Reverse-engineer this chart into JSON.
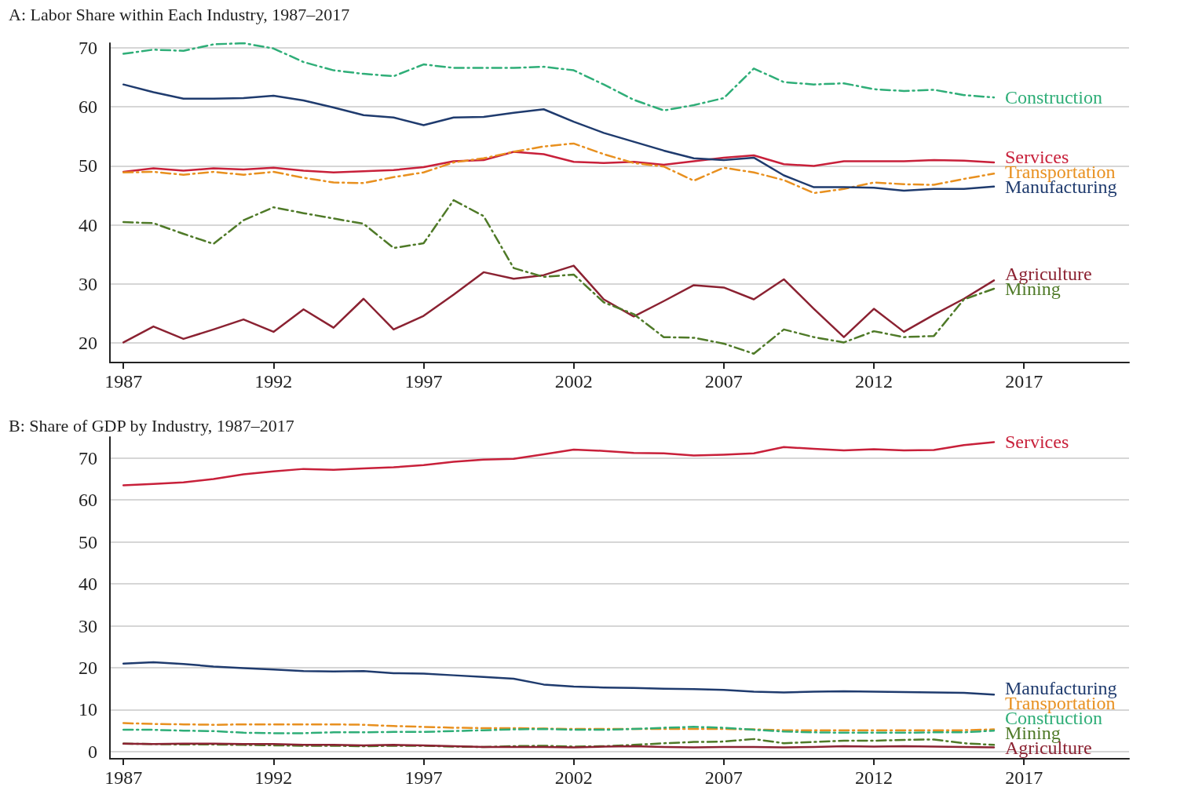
{
  "chart_data": [
    {
      "type": "line",
      "title": "A: Labor Share within Each Industry, 1987–2017",
      "x": [
        1987,
        1988,
        1989,
        1990,
        1991,
        1992,
        1993,
        1994,
        1995,
        1996,
        1997,
        1998,
        1999,
        2000,
        2001,
        2002,
        2003,
        2004,
        2005,
        2006,
        2007,
        2008,
        2009,
        2010,
        2011,
        2012,
        2013,
        2014,
        2015,
        2016
      ],
      "xlim": [
        1986.55,
        2020.5
      ],
      "xticks": [
        1987,
        1992,
        1997,
        2002,
        2007,
        2012,
        2017
      ],
      "ylim": [
        16.7,
        70.8
      ],
      "yticks": [
        20,
        30,
        40,
        50,
        60,
        70
      ],
      "grid": "y",
      "legend": false,
      "marker": "none",
      "series": [
        {
          "name": "Construction",
          "color": "#2fae78",
          "line_style": "dashed",
          "values": [
            69.0,
            69.7,
            69.5,
            70.6,
            70.8,
            69.9,
            67.6,
            66.2,
            65.6,
            65.2,
            67.2,
            66.6,
            66.6,
            66.6,
            66.8,
            66.2,
            63.8,
            61.2,
            59.4,
            60.3,
            61.5,
            66.5,
            64.2,
            63.8,
            64.0,
            63.0,
            62.7,
            62.9,
            62.0,
            61.6
          ]
        },
        {
          "name": "Services",
          "color": "#c8203a",
          "line_style": "solid",
          "values": [
            49.0,
            49.6,
            49.2,
            49.6,
            49.4,
            49.7,
            49.2,
            48.9,
            49.1,
            49.3,
            49.8,
            50.8,
            51.0,
            52.4,
            52.0,
            50.7,
            50.5,
            50.7,
            50.2,
            50.8,
            51.4,
            51.8,
            50.3,
            50.0,
            50.8,
            50.8,
            50.8,
            51.0,
            50.9,
            50.6
          ]
        },
        {
          "name": "Transportation",
          "color": "#e8901f",
          "line_style": "dashed",
          "values": [
            48.9,
            49.0,
            48.5,
            49.0,
            48.5,
            49.0,
            48.0,
            47.2,
            47.1,
            48.1,
            48.9,
            50.6,
            51.3,
            52.4,
            53.3,
            53.8,
            52.0,
            50.5,
            49.9,
            47.5,
            49.7,
            48.9,
            47.6,
            45.4,
            46.1,
            47.2,
            46.9,
            46.8,
            47.8,
            48.7
          ]
        },
        {
          "name": "Manufacturing",
          "color": "#1f3b6e",
          "line_style": "solid",
          "values": [
            63.8,
            62.5,
            61.4,
            61.4,
            61.5,
            61.9,
            61.1,
            59.9,
            58.6,
            58.2,
            56.9,
            58.2,
            58.3,
            59.0,
            59.6,
            57.5,
            55.6,
            54.1,
            52.6,
            51.3,
            51.0,
            51.4,
            48.4,
            46.4,
            46.4,
            46.3,
            45.8,
            46.1,
            46.1,
            46.5
          ]
        },
        {
          "name": "Agriculture",
          "color": "#8b2232",
          "line_style": "solid",
          "values": [
            20.1,
            22.8,
            20.7,
            22.3,
            24.0,
            21.9,
            25.7,
            22.6,
            27.5,
            22.3,
            24.6,
            28.2,
            32.0,
            30.9,
            31.5,
            33.1,
            27.4,
            24.5,
            27.1,
            29.8,
            29.4,
            27.4,
            30.8,
            25.8,
            21.0,
            25.8,
            21.9,
            24.8,
            27.5,
            30.6
          ]
        },
        {
          "name": "Mining",
          "color": "#4f7a28",
          "line_style": "dashed",
          "values": [
            40.5,
            40.3,
            38.5,
            36.8,
            40.8,
            43.0,
            42.0,
            41.1,
            40.2,
            36.1,
            36.9,
            44.2,
            41.5,
            32.7,
            31.2,
            31.6,
            26.9,
            24.9,
            21.0,
            20.9,
            19.9,
            18.2,
            22.3,
            21.0,
            20.1,
            22.0,
            21.0,
            21.2,
            27.4,
            29.2
          ]
        }
      ]
    },
    {
      "type": "line",
      "title": "B: Share of GDP by Industry, 1987–2017",
      "x": [
        1987,
        1988,
        1989,
        1990,
        1991,
        1992,
        1993,
        1994,
        1995,
        1996,
        1997,
        1998,
        1999,
        2000,
        2001,
        2002,
        2003,
        2004,
        2005,
        2006,
        2007,
        2008,
        2009,
        2010,
        2011,
        2012,
        2013,
        2014,
        2015,
        2016
      ],
      "xlim": [
        1986.55,
        2020.5
      ],
      "xticks": [
        1987,
        1992,
        1997,
        2002,
        2007,
        2012,
        2017
      ],
      "ylim": [
        -1.7,
        75
      ],
      "yticks": [
        0,
        10,
        20,
        30,
        40,
        50,
        60,
        70
      ],
      "grid": "y",
      "legend": false,
      "marker": "none",
      "series": [
        {
          "name": "Services",
          "color": "#c8203a",
          "line_style": "solid",
          "values": [
            63.5,
            63.8,
            64.2,
            65.0,
            66.1,
            66.8,
            67.4,
            67.2,
            67.5,
            67.8,
            68.3,
            69.1,
            69.6,
            69.8,
            70.9,
            72.0,
            71.7,
            71.2,
            71.1,
            70.6,
            70.8,
            71.1,
            72.6,
            72.2,
            71.8,
            72.1,
            71.8,
            71.9,
            73.1,
            73.8
          ]
        },
        {
          "name": "Manufacturing",
          "color": "#1f3b6e",
          "line_style": "solid",
          "values": [
            21.0,
            21.3,
            20.9,
            20.3,
            19.9,
            19.6,
            19.2,
            19.1,
            19.2,
            18.7,
            18.6,
            18.2,
            17.8,
            17.4,
            16.0,
            15.5,
            15.3,
            15.2,
            15.0,
            14.9,
            14.7,
            14.3,
            14.1,
            14.3,
            14.4,
            14.3,
            14.2,
            14.1,
            14.0,
            13.6
          ]
        },
        {
          "name": "Transportation",
          "color": "#e8901f",
          "line_style": "dashed",
          "values": [
            6.8,
            6.6,
            6.5,
            6.4,
            6.5,
            6.5,
            6.5,
            6.5,
            6.4,
            6.1,
            5.9,
            5.7,
            5.6,
            5.6,
            5.5,
            5.4,
            5.4,
            5.4,
            5.4,
            5.4,
            5.4,
            5.3,
            5.1,
            5.1,
            5.1,
            5.1,
            5.1,
            5.1,
            5.1,
            5.3
          ]
        },
        {
          "name": "Construction",
          "color": "#2fae78",
          "line_style": "dashed",
          "values": [
            5.2,
            5.2,
            5.0,
            4.9,
            4.5,
            4.4,
            4.4,
            4.6,
            4.6,
            4.7,
            4.7,
            4.9,
            5.1,
            5.3,
            5.4,
            5.2,
            5.2,
            5.4,
            5.7,
            5.9,
            5.7,
            5.2,
            4.8,
            4.6,
            4.5,
            4.5,
            4.5,
            4.6,
            4.6,
            5.0
          ]
        },
        {
          "name": "Mining",
          "color": "#4f7a28",
          "line_style": "dashed",
          "values": [
            1.9,
            1.8,
            1.7,
            1.7,
            1.6,
            1.5,
            1.4,
            1.4,
            1.3,
            1.4,
            1.4,
            1.2,
            1.1,
            1.3,
            1.4,
            1.2,
            1.3,
            1.6,
            2.0,
            2.3,
            2.4,
            3.0,
            2.0,
            2.3,
            2.6,
            2.6,
            2.8,
            2.9,
            2.0,
            1.6
          ]
        },
        {
          "name": "Agriculture",
          "color": "#8b2232",
          "line_style": "solid",
          "values": [
            1.9,
            1.8,
            1.9,
            1.9,
            1.8,
            1.8,
            1.6,
            1.6,
            1.5,
            1.6,
            1.5,
            1.3,
            1.1,
            1.1,
            1.1,
            1.0,
            1.2,
            1.3,
            1.1,
            1.0,
            1.1,
            1.1,
            1.0,
            1.1,
            1.3,
            1.2,
            1.3,
            1.2,
            1.1,
            1.0
          ]
        }
      ]
    }
  ]
}
